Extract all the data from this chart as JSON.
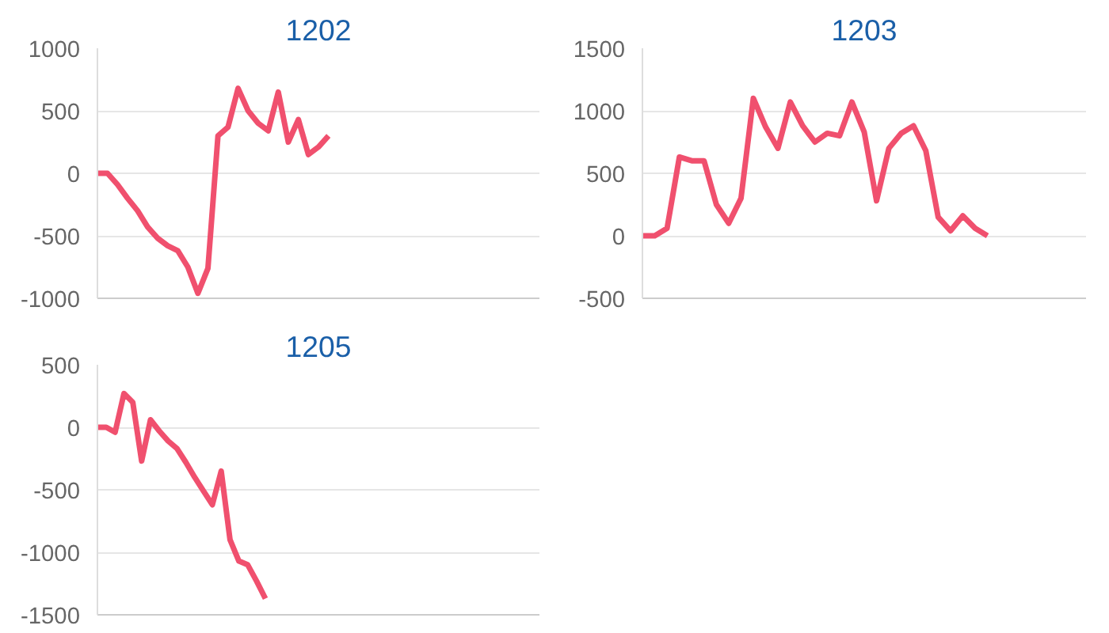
{
  "chart_data": [
    {
      "type": "line",
      "title": "1202",
      "categories": [
        null,
        null,
        null,
        null,
        null,
        null,
        null,
        null,
        null,
        null,
        null,
        null,
        null,
        null,
        null,
        null,
        null,
        null,
        null,
        null,
        null,
        null,
        null,
        null,
        null,
        null,
        null,
        null,
        null,
        null,
        null,
        null,
        null,
        null,
        null,
        null,
        null,
        null,
        null,
        null,
        null,
        null,
        null,
        null,
        null
      ],
      "series": [
        {
          "color": "#f0506e",
          "values": [
            0,
            0,
            -90,
            -200,
            -300,
            -430,
            -520,
            -580,
            -620,
            -750,
            -960,
            -760,
            300,
            370,
            680,
            500,
            400,
            340,
            650,
            250,
            430,
            150,
            210,
            300,
            null,
            null,
            null,
            null,
            null,
            null,
            null,
            null,
            null,
            null,
            null,
            null,
            null,
            null,
            null,
            null,
            null,
            null,
            null,
            null,
            null
          ]
        }
      ],
      "ylim": [
        -1000,
        1000
      ],
      "yticks": [
        -1000,
        -500,
        0,
        500,
        1000
      ],
      "grid": "y",
      "tick_labels": "y"
    },
    {
      "type": "line",
      "title": "1203",
      "categories": [
        null,
        null,
        null,
        null,
        null,
        null,
        null,
        null,
        null,
        null,
        null,
        null,
        null,
        null,
        null,
        null,
        null,
        null,
        null,
        null,
        null,
        null,
        null,
        null,
        null,
        null,
        null,
        null,
        null,
        null,
        null,
        null,
        null,
        null,
        null,
        null,
        null
      ],
      "series": [
        {
          "color": "#f0506e",
          "values": [
            0,
            0,
            60,
            630,
            600,
            600,
            250,
            100,
            300,
            1100,
            870,
            700,
            1070,
            880,
            750,
            820,
            800,
            1070,
            830,
            280,
            700,
            820,
            880,
            680,
            150,
            40,
            160,
            60,
            0,
            null,
            null,
            null,
            null,
            null,
            null,
            null,
            null
          ]
        }
      ],
      "ylim": [
        -500,
        1500
      ],
      "yticks": [
        -500,
        0,
        500,
        1000,
        1500
      ],
      "grid": "y",
      "tick_labels": "y"
    },
    {
      "type": "line",
      "title": "1205",
      "categories": [
        null,
        null,
        null,
        null,
        null,
        null,
        null,
        null,
        null,
        null,
        null,
        null,
        null,
        null,
        null,
        null,
        null,
        null,
        null,
        null,
        null,
        null,
        null,
        null,
        null,
        null,
        null,
        null,
        null,
        null,
        null,
        null,
        null,
        null,
        null,
        null,
        null,
        null,
        null,
        null,
        null,
        null,
        null,
        null,
        null,
        null,
        null,
        null,
        null,
        null,
        null
      ],
      "series": [
        {
          "color": "#f0506e",
          "values": [
            0,
            0,
            -40,
            270,
            200,
            -270,
            60,
            -30,
            -110,
            -170,
            -280,
            -400,
            -510,
            -620,
            -350,
            -900,
            -1070,
            -1100,
            -1230,
            -1370,
            null,
            null,
            null,
            null,
            null,
            null,
            null,
            null,
            null,
            null,
            null,
            null,
            null,
            null,
            null,
            null,
            null,
            null,
            null,
            null,
            null,
            null,
            null,
            null,
            null,
            null,
            null,
            null,
            null,
            null,
            null
          ]
        }
      ],
      "ylim": [
        -1500,
        500
      ],
      "yticks": [
        -1500,
        -1000,
        -500,
        0,
        500
      ],
      "grid": "y",
      "tick_labels": "y"
    }
  ]
}
